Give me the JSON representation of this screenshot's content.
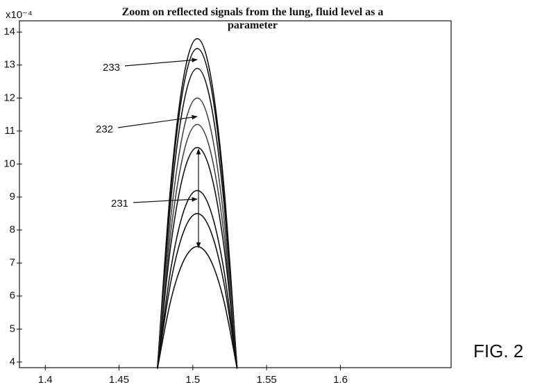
{
  "chart_data": {
    "type": "line",
    "title": "Zoom on reflected signals from the lung, fluid level as a parameter",
    "y_exponent_label": "x10⁻⁴",
    "x": [
      1.476,
      1.485,
      1.494,
      1.503,
      1.512,
      1.521,
      1.53
    ],
    "series": [
      {
        "color": "#111111",
        "values": [
          3.8,
          9.36,
          12.69,
          13.8,
          12.69,
          9.36,
          3.8
        ]
      },
      {
        "color": "#111111",
        "values": [
          3.8,
          9.19,
          12.42,
          13.5,
          12.42,
          9.19,
          3.8
        ]
      },
      {
        "color": "#111111",
        "values": [
          3.8,
          8.86,
          11.89,
          12.9,
          11.89,
          8.86,
          3.8
        ]
      },
      {
        "color": "#444444",
        "values": [
          3.8,
          8.36,
          11.09,
          12.0,
          11.09,
          8.36,
          3.8
        ]
      },
      {
        "color": "#444444",
        "values": [
          3.8,
          7.91,
          10.38,
          11.2,
          10.38,
          7.91,
          3.8
        ]
      },
      {
        "color": "#111111",
        "values": [
          3.8,
          7.52,
          9.76,
          10.5,
          9.76,
          7.52,
          3.8
        ]
      },
      {
        "color": "#111111",
        "values": [
          3.8,
          6.8,
          8.6,
          9.2,
          8.6,
          6.8,
          3.8
        ]
      },
      {
        "color": "#111111",
        "values": [
          3.8,
          6.41,
          7.98,
          8.5,
          7.98,
          6.41,
          3.8
        ]
      },
      {
        "color": "#111111",
        "values": [
          3.8,
          5.86,
          7.09,
          7.5,
          7.09,
          5.86,
          3.8
        ]
      }
    ],
    "xlim": [
      1.3825,
      1.675
    ],
    "ylim": [
      3.83,
      14.34
    ],
    "xticks": [
      1.4,
      1.45,
      1.5,
      1.55,
      1.6
    ],
    "yticks": [
      4,
      5,
      6,
      7,
      8,
      9,
      10,
      11,
      12,
      13,
      14
    ],
    "annotations": [
      "233",
      "232",
      "231"
    ],
    "figure_label": "FIG. 2"
  }
}
